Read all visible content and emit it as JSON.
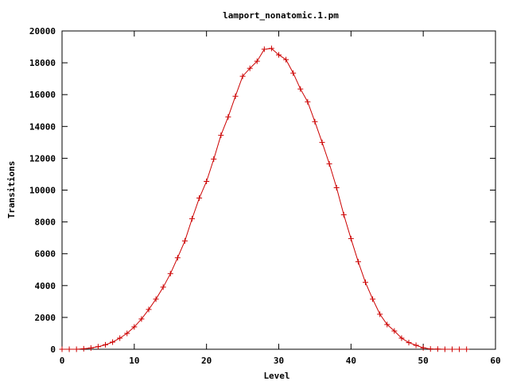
{
  "chart_data": {
    "type": "line",
    "title": "lamport_nonatomic.1.pm",
    "xlabel": "Level",
    "ylabel": "Transitions",
    "xlim": [
      0,
      60
    ],
    "ylim": [
      0,
      20000
    ],
    "x_ticks": [
      0,
      10,
      20,
      30,
      40,
      50,
      60
    ],
    "y_ticks": [
      0,
      2000,
      4000,
      6000,
      8000,
      10000,
      12000,
      14000,
      16000,
      18000,
      20000
    ],
    "grid": false,
    "legend": "none",
    "series": [
      {
        "color": "#cc0000",
        "marker": "plus",
        "x": [
          0,
          1,
          2,
          3,
          4,
          5,
          6,
          7,
          8,
          9,
          10,
          11,
          12,
          13,
          14,
          15,
          16,
          17,
          18,
          19,
          20,
          21,
          22,
          23,
          24,
          25,
          26,
          27,
          28,
          29,
          30,
          31,
          32,
          33,
          34,
          35,
          36,
          37,
          38,
          39,
          40,
          41,
          42,
          43,
          44,
          45,
          46,
          47,
          48,
          49,
          50,
          51,
          52,
          53,
          54,
          55,
          56
        ],
        "y": [
          0,
          0,
          0,
          30,
          80,
          160,
          280,
          450,
          700,
          1000,
          1400,
          1900,
          2500,
          3150,
          3900,
          4750,
          5750,
          6800,
          8200,
          9500,
          10550,
          11950,
          13450,
          14600,
          15900,
          17150,
          17650,
          18100,
          18850,
          18900,
          18500,
          18200,
          17350,
          16350,
          15550,
          14300,
          13000,
          11650,
          10150,
          8450,
          6950,
          5500,
          4200,
          3150,
          2200,
          1550,
          1150,
          700,
          420,
          250,
          90,
          20,
          10,
          0,
          0,
          0,
          0
        ]
      }
    ]
  }
}
